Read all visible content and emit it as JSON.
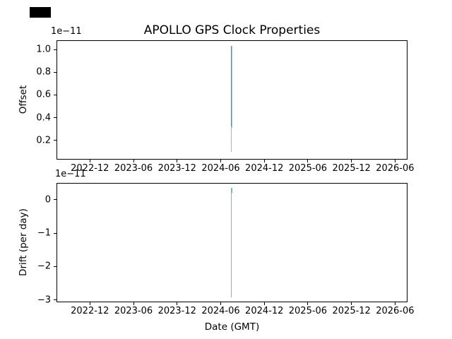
{
  "figure": {
    "title": "APOLLO GPS Clock Properties",
    "xlabel": "Date (GMT)"
  },
  "chart_data": [
    {
      "type": "scatter",
      "subplot": "top",
      "title": "APOLLO GPS Clock Properties",
      "ylabel": "Offset",
      "offset_text": "1e−11",
      "y_unit_multiplier": 1e-11,
      "x_tick_labels": [
        "2022-12",
        "2023-06",
        "2023-12",
        "2024-06",
        "2024-12",
        "2025-06",
        "2025-12",
        "2026-06"
      ],
      "y_tick_labels": [
        "1.0",
        "0.8",
        "0.6",
        "0.4",
        "0.2"
      ],
      "y_tick_values": [
        1.0,
        0.8,
        0.6,
        0.4,
        0.2
      ],
      "ylim": [
        0.031,
        1.081
      ],
      "grid": false,
      "legend": null,
      "series": [
        {
          "name": "offset",
          "color": "#1f77b4",
          "x": "2024-07",
          "y_min": 0.1,
          "y_max": 1.03,
          "note": "dense vertical cluster of samples near 2024-07; y values are ×1e-11 seconds",
          "segments": [
            {
              "y0": 0.31,
              "y1": 1.034,
              "w": 2,
              "colors": [
                "#4190c4",
                "#9fc8e2"
              ]
            },
            {
              "y0": 0.097,
              "y1": 0.32,
              "w": 1,
              "colors": [
                "#8cbbdc"
              ]
            }
          ]
        }
      ]
    },
    {
      "type": "scatter",
      "subplot": "bottom",
      "xlabel": "Date (GMT)",
      "ylabel": "Drift (per day)",
      "offset_text": "1e−11",
      "y_unit_multiplier": 1e-11,
      "x_tick_labels": [
        "2022-12",
        "2023-06",
        "2023-12",
        "2024-06",
        "2024-12",
        "2025-06",
        "2025-12",
        "2026-06"
      ],
      "y_tick_labels": [
        "0",
        "−1",
        "−2",
        "−3"
      ],
      "y_tick_values": [
        0,
        -1,
        -2,
        -3
      ],
      "ylim": [
        -3.068,
        0.506
      ],
      "grid": false,
      "legend": null,
      "series": [
        {
          "name": "drift",
          "color": "#1f77b4",
          "x": "2024-07",
          "y_min": -2.91,
          "y_max": 0.36,
          "note": "dense vertical cluster of samples near 2024-07; y values are ×1e-11 per day",
          "segments": [
            {
              "y0": 0.2,
              "y1": 0.36,
              "w": 2,
              "colors": [
                "#7fb2d8"
              ]
            },
            {
              "y0": -2.91,
              "y1": 0.21,
              "w": 1,
              "colors": [
                "#7fb2d8"
              ]
            }
          ]
        }
      ]
    }
  ]
}
